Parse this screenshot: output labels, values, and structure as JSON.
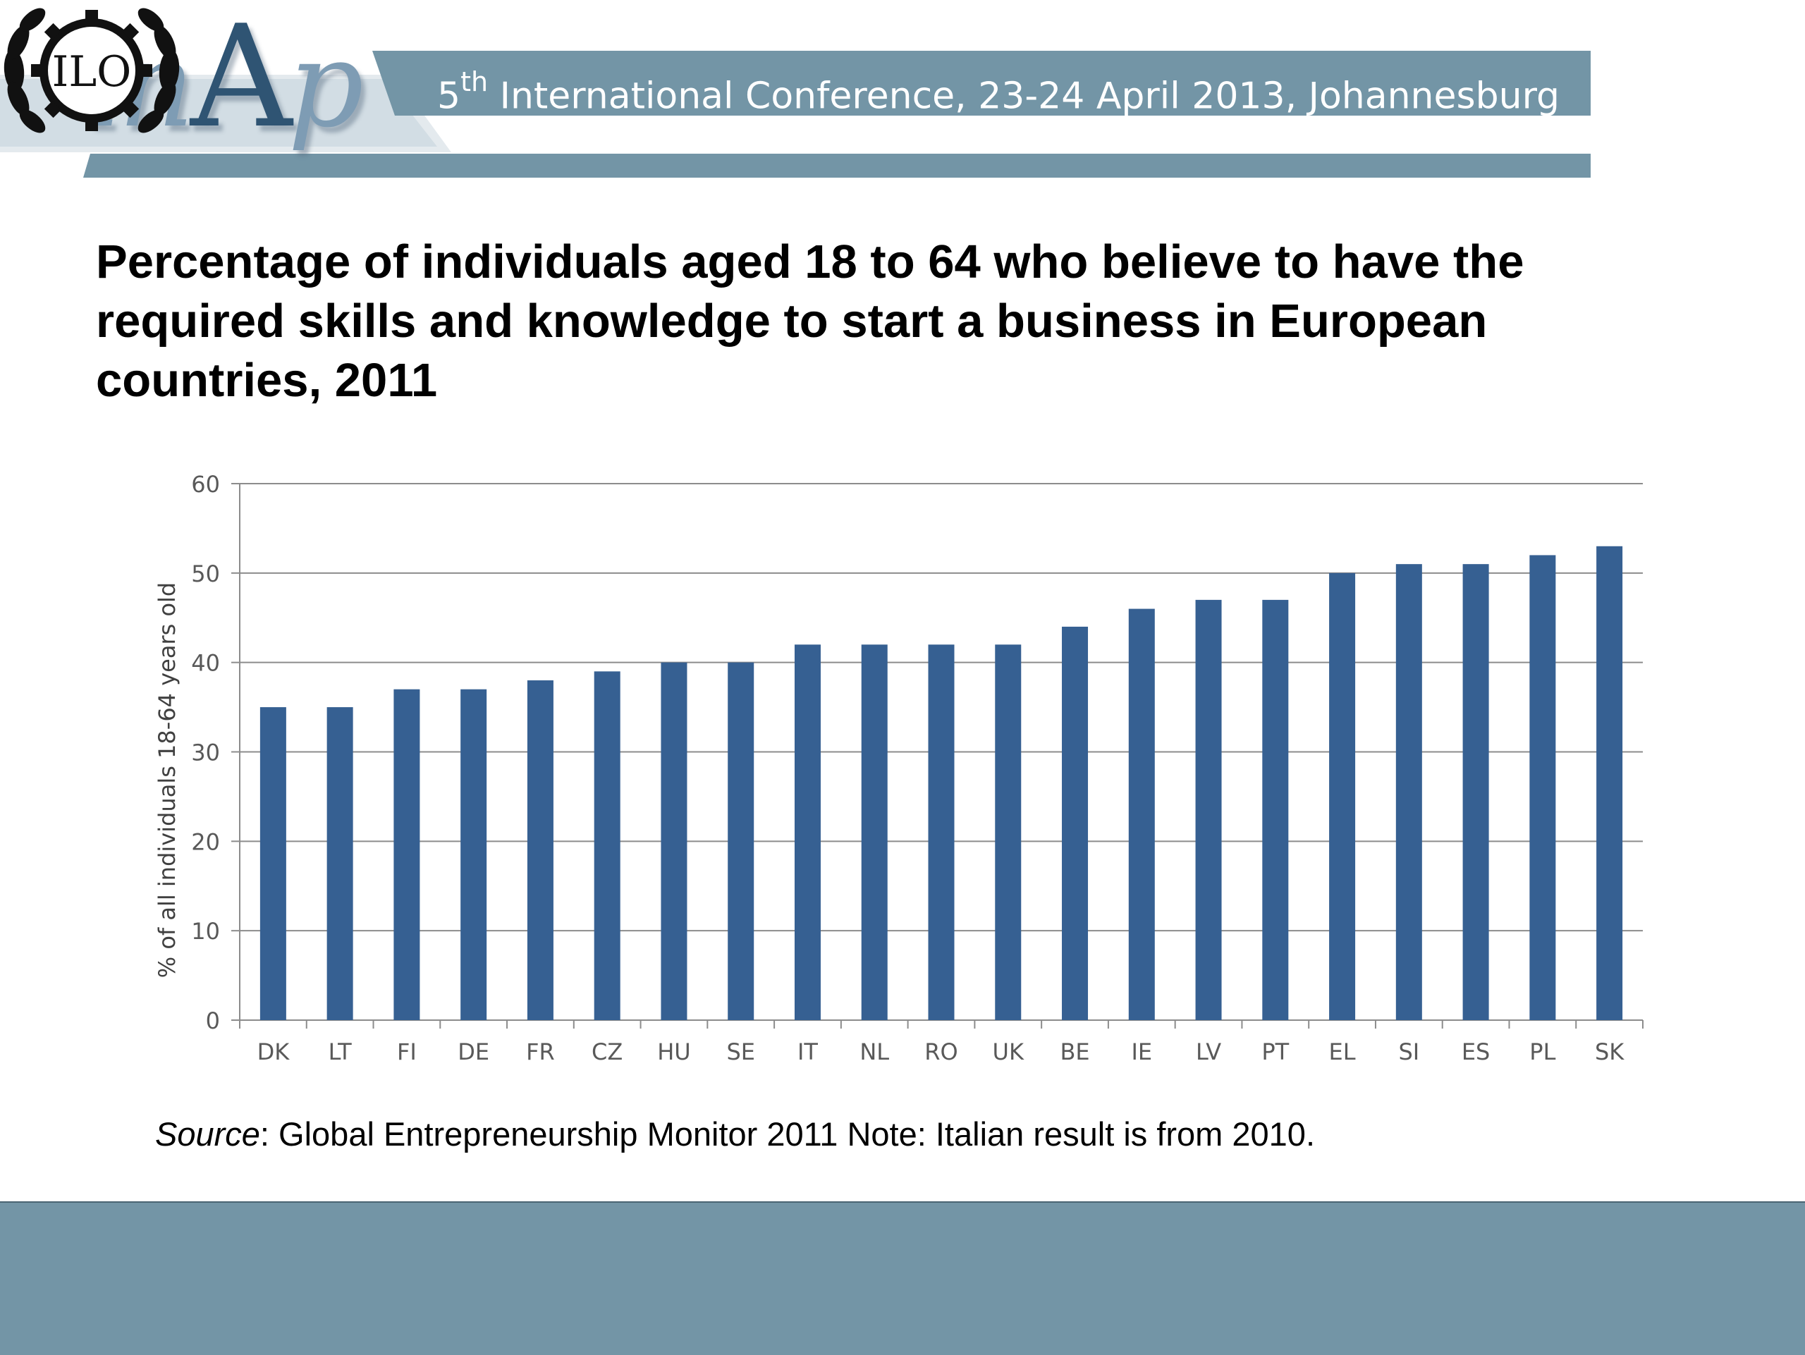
{
  "header": {
    "logo_text_prefix": "in",
    "logo_text_a": "A",
    "logo_text_suffix": "p",
    "conference_ordinal": "5",
    "conference_ordinal_suffix": "th",
    "conference_title": " International Conference, 23-24 April 2013, Johannesburg",
    "ilo_text": "ILO"
  },
  "slide": {
    "title": "Percentage of individuals aged 18 to 64 who believe to have the required skills and  knowledge to start a business in European countries, 2011",
    "source_label": "Source",
    "source_text": ": Global Entrepreneurship Monitor 2011 Note: Italian result is from 2010."
  },
  "colors": {
    "bar": "#366092",
    "header_band": "#7395a6",
    "footer": "#7395a6"
  },
  "chart_data": {
    "type": "bar",
    "categories": [
      "DK",
      "LT",
      "FI",
      "DE",
      "FR",
      "CZ",
      "HU",
      "SE",
      "IT",
      "NL",
      "RO",
      "UK",
      "BE",
      "IE",
      "LV",
      "PT",
      "EL",
      "SI",
      "ES",
      "PL",
      "SK"
    ],
    "values": [
      35,
      35,
      37,
      37,
      38,
      39,
      40,
      40,
      42,
      42,
      42,
      42,
      44,
      46,
      47,
      47,
      50,
      51,
      51,
      52,
      53
    ],
    "title": "",
    "xlabel": "",
    "ylabel": "% of all individuals  18-64 years old",
    "ylim": [
      0,
      60
    ],
    "yticks": [
      0,
      10,
      20,
      30,
      40,
      50,
      60
    ],
    "grid": true,
    "legend": "none"
  }
}
